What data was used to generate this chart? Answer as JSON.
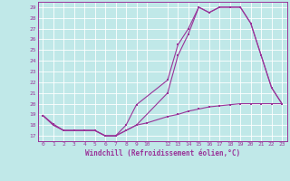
{
  "title": "",
  "xlabel": "Windchill (Refroidissement éolien,°C)",
  "bg_color": "#c0e8e8",
  "line_color": "#993399",
  "grid_color": "#ffffff",
  "xlim": [
    -0.5,
    23.5
  ],
  "ylim": [
    16.5,
    29.5
  ],
  "xticks": [
    0,
    1,
    2,
    3,
    4,
    5,
    6,
    7,
    8,
    9,
    10,
    12,
    13,
    14,
    15,
    16,
    17,
    18,
    19,
    20,
    21,
    22,
    23
  ],
  "yticks": [
    17,
    18,
    19,
    20,
    21,
    22,
    23,
    24,
    25,
    26,
    27,
    28,
    29
  ],
  "line1_x": [
    0,
    1,
    2,
    3,
    4,
    5,
    6,
    7,
    8,
    9,
    12,
    13,
    14,
    15,
    16,
    17,
    18,
    19,
    20,
    21,
    22,
    23
  ],
  "line1_y": [
    18.9,
    18.0,
    17.5,
    17.5,
    17.5,
    17.5,
    17.0,
    17.0,
    18.0,
    19.9,
    22.2,
    25.5,
    27.0,
    29.0,
    28.5,
    29.0,
    29.0,
    29.0,
    27.5,
    24.5,
    21.5,
    20.0
  ],
  "line2_x": [
    0,
    1,
    2,
    3,
    4,
    5,
    6,
    7,
    8,
    9,
    12,
    13,
    14,
    15,
    16,
    17,
    18,
    19,
    20,
    21,
    22,
    23
  ],
  "line2_y": [
    18.9,
    18.0,
    17.5,
    17.5,
    17.5,
    17.5,
    17.0,
    17.0,
    17.5,
    18.0,
    21.0,
    24.5,
    26.5,
    29.0,
    28.5,
    29.0,
    29.0,
    29.0,
    27.5,
    24.5,
    21.5,
    20.0
  ],
  "line3_x": [
    0,
    1,
    2,
    3,
    4,
    5,
    6,
    7,
    8,
    9,
    10,
    12,
    13,
    14,
    15,
    16,
    17,
    18,
    19,
    20,
    21,
    22,
    23
  ],
  "line3_y": [
    18.9,
    18.1,
    17.5,
    17.5,
    17.5,
    17.5,
    17.0,
    17.0,
    17.5,
    18.0,
    18.2,
    18.8,
    19.0,
    19.3,
    19.5,
    19.7,
    19.8,
    19.9,
    20.0,
    20.0,
    20.0,
    20.0,
    20.0
  ]
}
